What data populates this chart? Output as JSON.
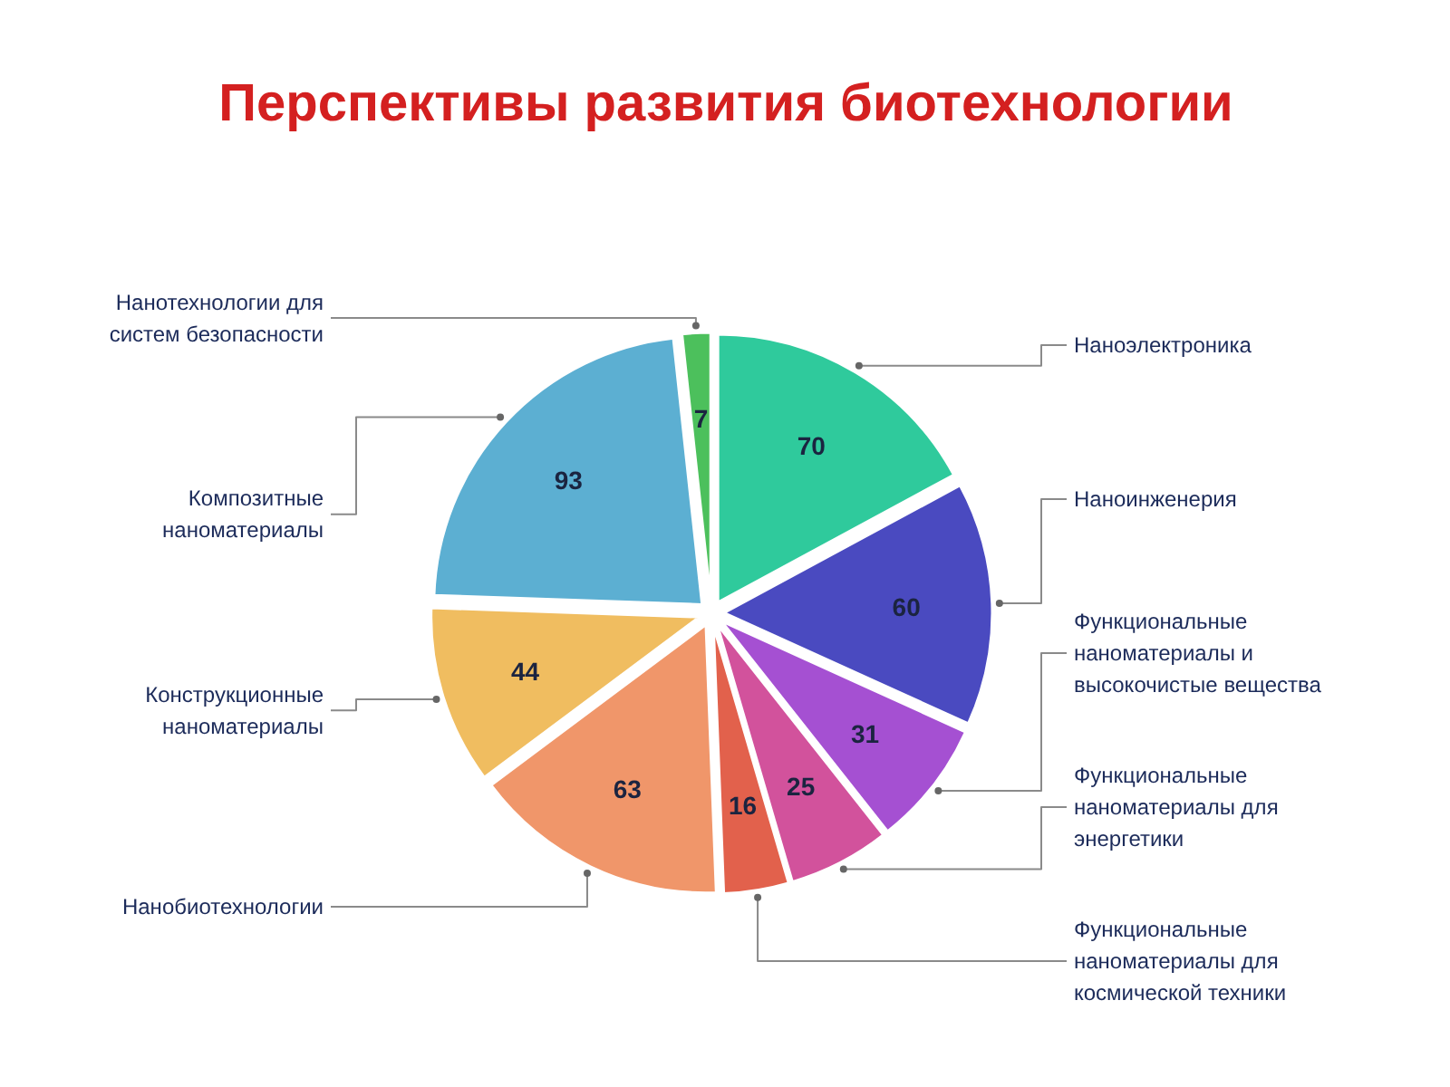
{
  "chart_data": {
    "type": "pie",
    "title": "Перспективы развития биотехнологии",
    "categories": [
      "Наноэлектроника",
      "Наноинженерия",
      "Функциональные наноматериалы и высокочистые вещества",
      "Функциональные наноматериалы для энергетики",
      "Функциональные наноматериалы для космической техники",
      "Нанобиотехнологии",
      "Конструкционные наноматериалы",
      "Композитные наноматериалы",
      "Нанотехнологии для систем безопасности"
    ],
    "values": [
      70,
      60,
      31,
      25,
      16,
      63,
      44,
      93,
      7
    ],
    "colors": [
      "#2fca9c",
      "#4a4ac0",
      "#a550d2",
      "#d2529c",
      "#e2614c",
      "#f0966a",
      "#f0bd60",
      "#5cafd2",
      "#4cc05c"
    ],
    "data_labels": true
  }
}
